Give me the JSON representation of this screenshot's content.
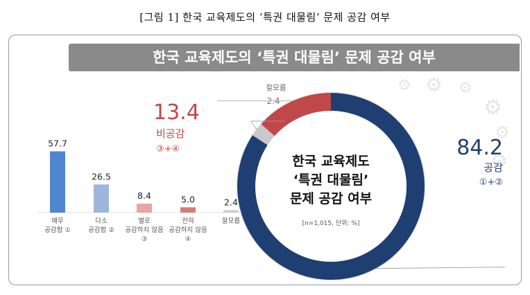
{
  "caption": "[그림 1] 한국 교육제도의 ‘특권 대물림’ 문제 공감 여부",
  "colors": {
    "banner": "#8a8a8a",
    "agree_navy": "#1f3f73",
    "disagree_red": "#c0474a",
    "dontknow_gray": "#c9c9c9",
    "bar_blue": "#4f86d0",
    "bar_lightblue": "#9db6da",
    "bar_pink": "#e8a5a6",
    "bar_red": "#d77a7a",
    "bar_gray": "#cfcfcf"
  },
  "chart_data": [
    {
      "type": "bar",
      "title": "한국 교육제도의 ‘특권 대물림’ 문제 공감 여부",
      "categories": [
        [
          "매우",
          "공감함 ①"
        ],
        [
          "다소",
          "공감함 ②"
        ],
        [
          "별로",
          "공감하지 않음",
          "③"
        ],
        [
          "전혀",
          "공감하지 않음",
          "④"
        ],
        [
          "잘모름"
        ]
      ],
      "values": [
        57.7,
        26.5,
        8.4,
        5.0,
        2.4
      ],
      "value_labels": [
        "57.7",
        "26.5",
        "8.4",
        "5.0",
        "2.4"
      ],
      "ylim": [
        0,
        60
      ]
    },
    {
      "type": "pie",
      "variant": "donut",
      "center_text": [
        "한국 교육제도",
        "‘특권 대물림’",
        "문제 공감 여부"
      ],
      "note": "[n=1,015, 단위: %]",
      "slices": [
        {
          "name": "공감",
          "value": 84.2,
          "value_label": "84.2",
          "detail": "①+②"
        },
        {
          "name": "잘모름",
          "value": 2.4,
          "value_label": "2.4",
          "detail": ""
        },
        {
          "name": "비공감",
          "value": 13.4,
          "value_label": "13.4",
          "detail": "③+④"
        }
      ]
    }
  ]
}
